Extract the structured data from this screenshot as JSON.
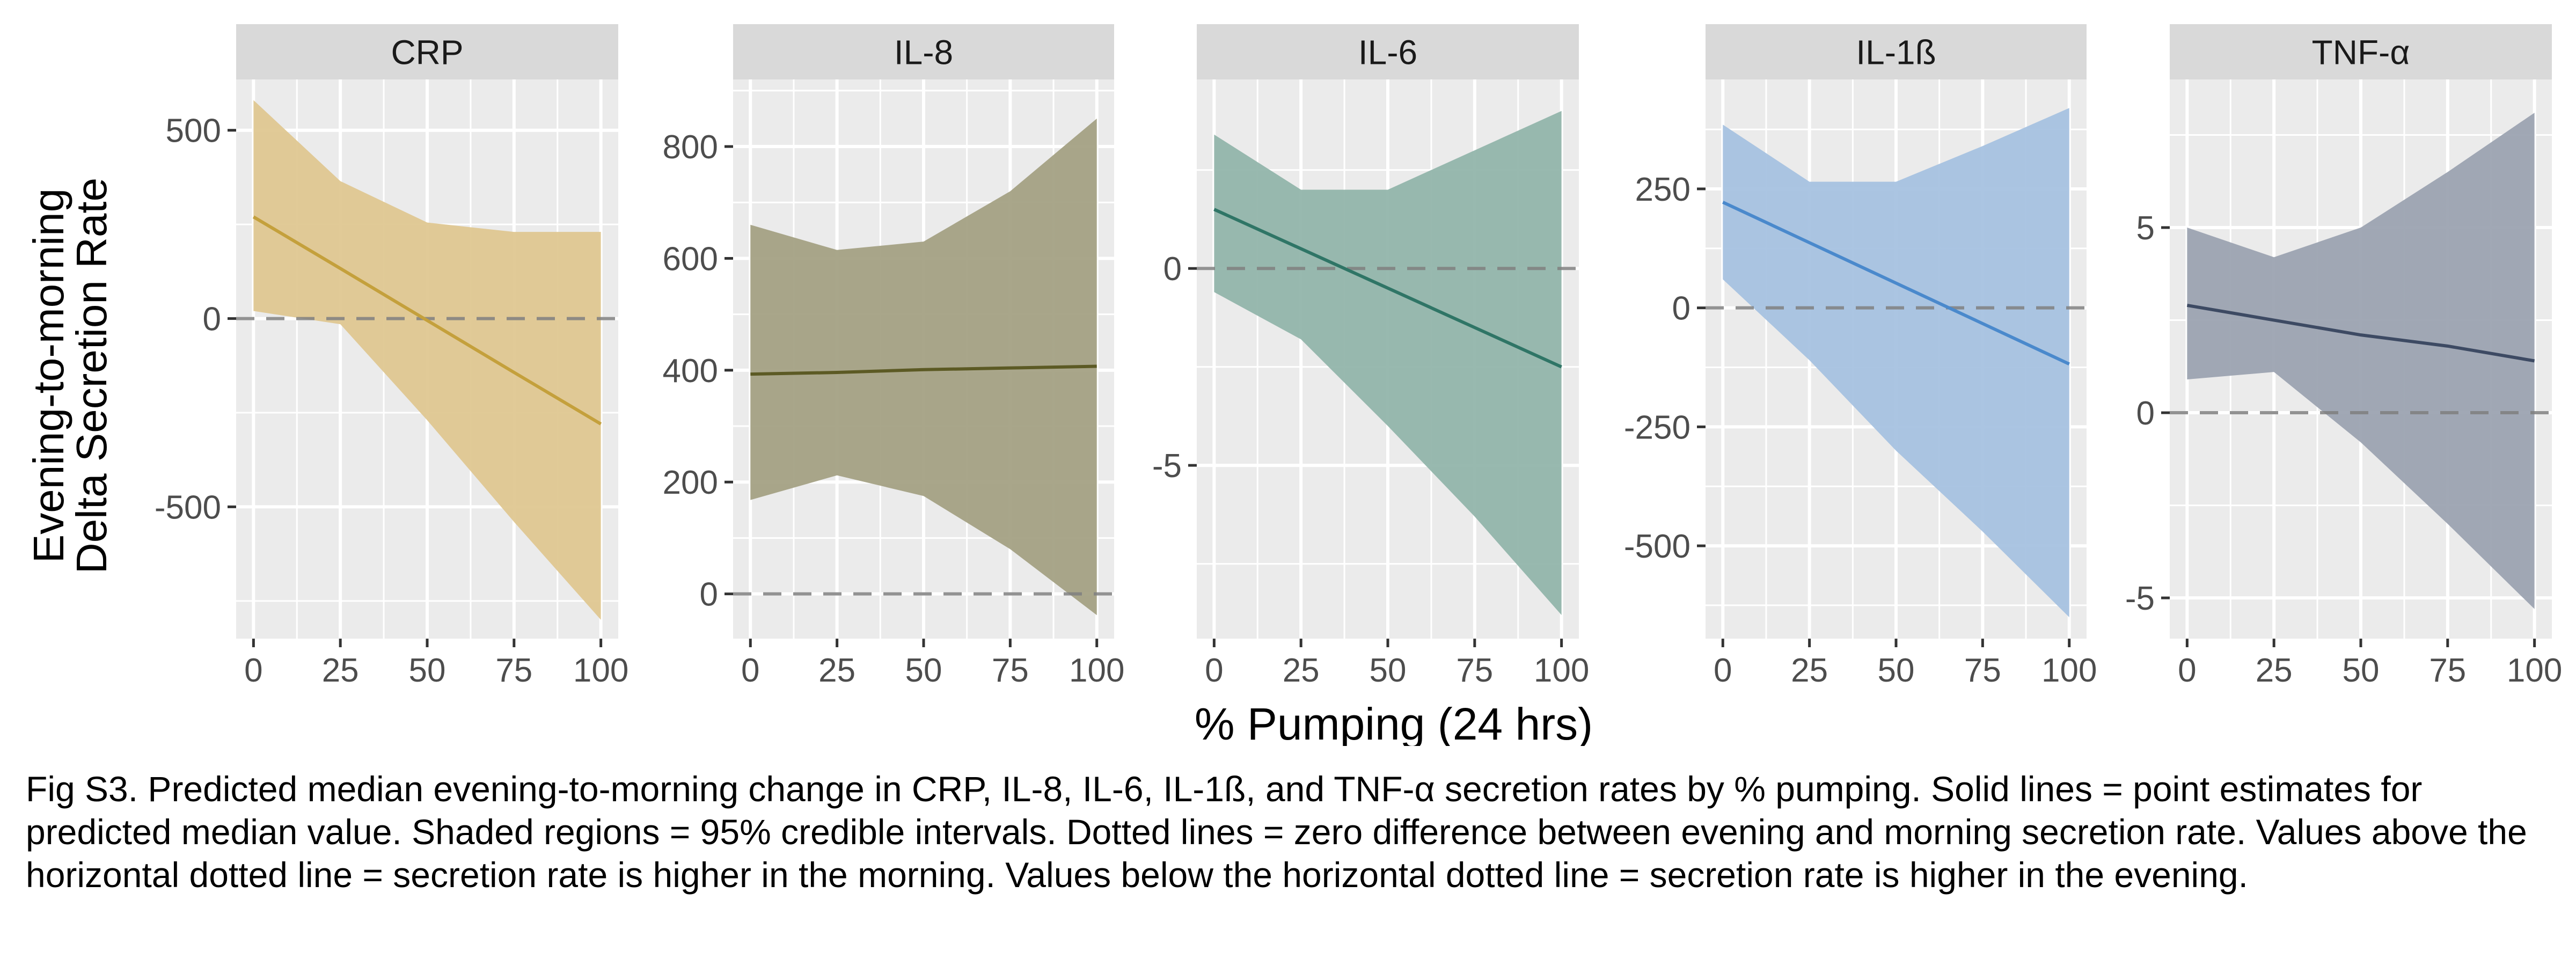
{
  "figure": {
    "y_axis_label_lines": [
      "Evening-to-morning",
      "Delta Secretion Rate"
    ],
    "x_axis_label": "% Pumping (24 hrs)",
    "caption": "Fig S3. Predicted median evening-to-morning change in CRP, IL-8, IL-6, IL-1ß, and TNF-α secretion rates by % pumping. Solid lines = point estimates for predicted median value. Shaded regions = 95% credible intervals. Dotted lines = zero difference between evening and morning secretion rate. Values above the horizontal dotted line = secretion rate is higher in the morning. Values below the horizontal dotted line = secretion rate is higher in the evening."
  },
  "chart_data": [
    {
      "type": "line",
      "title": "CRP",
      "x": [
        0,
        25,
        50,
        75,
        100
      ],
      "series": [
        {
          "values": [
            270,
            133,
            -5,
            -143,
            -280
          ],
          "ci_lower": [
            20,
            -15,
            -270,
            -540,
            -800
          ],
          "ci_upper": [
            580,
            365,
            255,
            230,
            230
          ]
        }
      ],
      "reference_line": 0,
      "xticks": [
        0,
        25,
        50,
        75,
        100
      ],
      "yticks": [
        -500,
        0,
        500
      ],
      "xlim": [
        -5,
        105
      ],
      "ylim": [
        -850,
        635
      ],
      "color": "#C4A03C",
      "band_color": "#DEC68E"
    },
    {
      "type": "line",
      "title": "IL-8",
      "x": [
        0,
        25,
        50,
        75,
        100
      ],
      "series": [
        {
          "values": [
            393,
            396,
            401,
            404,
            407
          ],
          "ci_lower": [
            168,
            212,
            175,
            80,
            -38
          ],
          "ci_upper": [
            660,
            615,
            630,
            720,
            850
          ]
        }
      ],
      "reference_line": 0,
      "xticks": [
        0,
        25,
        50,
        75,
        100
      ],
      "yticks": [
        0,
        200,
        400,
        600,
        800
      ],
      "xlim": [
        -5,
        105
      ],
      "ylim": [
        -80,
        920
      ],
      "color": "#5C5A24",
      "band_color": "#A29E80"
    },
    {
      "type": "line",
      "title": "IL-6",
      "x": [
        0,
        25,
        50,
        75,
        100
      ],
      "series": [
        {
          "values": [
            1.5,
            0.5,
            -0.5,
            -1.5,
            -2.5
          ],
          "ci_lower": [
            -0.6,
            -1.8,
            -4.0,
            -6.3,
            -8.8
          ],
          "ci_upper": [
            3.4,
            2.0,
            2.0,
            3.0,
            4.0
          ]
        }
      ],
      "reference_line": 0,
      "xticks": [
        0,
        25,
        50,
        75,
        100
      ],
      "yticks": [
        -5,
        0
      ],
      "xlim": [
        -5,
        105
      ],
      "ylim": [
        -9.4,
        4.8
      ],
      "color": "#2F7566",
      "band_color": "#8FB3A8"
    },
    {
      "type": "line",
      "title": "IL-1ß",
      "x": [
        0,
        25,
        50,
        75,
        100
      ],
      "series": [
        {
          "values": [
            222,
            137,
            52,
            -33,
            -118
          ],
          "ci_lower": [
            60,
            -110,
            -300,
            -470,
            -650
          ],
          "ci_upper": [
            385,
            265,
            265,
            340,
            420
          ]
        }
      ],
      "reference_line": 0,
      "xticks": [
        0,
        25,
        50,
        75,
        100
      ],
      "yticks": [
        -500,
        -250,
        0,
        250
      ],
      "xlim": [
        -5,
        105
      ],
      "ylim": [
        -695,
        480
      ],
      "color": "#4A89CC",
      "band_color": "#A4C0E0"
    },
    {
      "type": "line",
      "title": "TNF-α",
      "x": [
        0,
        25,
        50,
        75,
        100
      ],
      "series": [
        {
          "values": [
            2.9,
            2.5,
            2.1,
            1.8,
            1.4
          ],
          "ci_lower": [
            0.9,
            1.1,
            -0.8,
            -3.0,
            -5.3
          ],
          "ci_upper": [
            5.0,
            4.2,
            5.0,
            6.5,
            8.1
          ]
        }
      ],
      "reference_line": 0,
      "xticks": [
        0,
        25,
        50,
        75,
        100
      ],
      "yticks": [
        -5,
        0,
        5
      ],
      "xlim": [
        -5,
        105
      ],
      "ylim": [
        -6.1,
        9.0
      ],
      "color": "#3D4A63",
      "band_color": "#99A1AF"
    }
  ]
}
